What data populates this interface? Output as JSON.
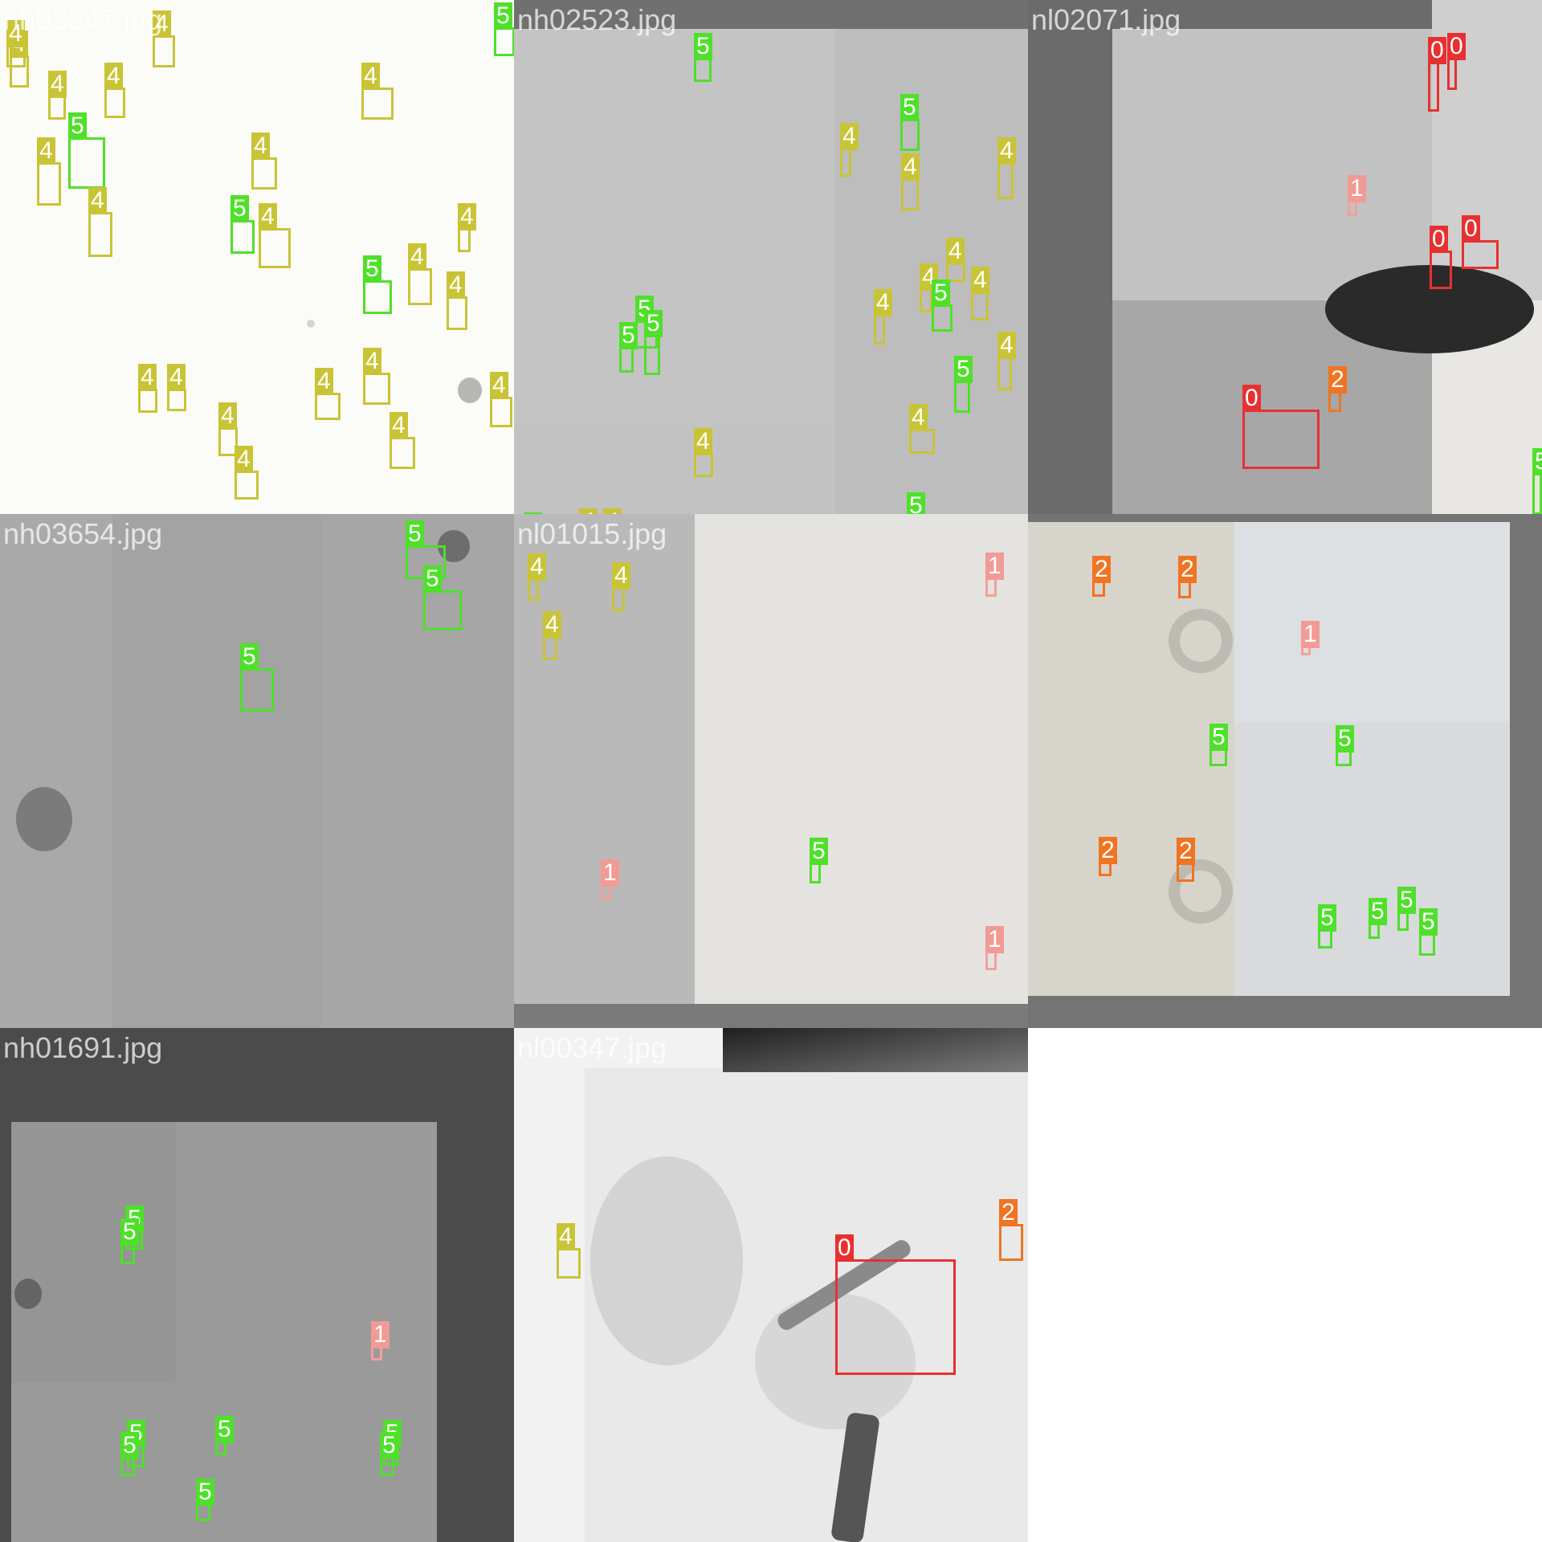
{
  "classes": {
    "0": {
      "color": "#e83030",
      "label_color": "#e83030"
    },
    "1": {
      "color": "#f4a09b",
      "label_color": "#f29a95"
    },
    "2": {
      "color": "#f07422",
      "label_color": "#f07422"
    },
    "4": {
      "color": "#c9c436",
      "label_color": "#c9c436"
    },
    "5": {
      "color": "#4fe02a",
      "label_color": "#4fe02a"
    }
  },
  "tiles": [
    {
      "title": "nh03347.jpg",
      "background": "#fbfbf7",
      "detections": [
        {
          "cls": "4",
          "label": "4"
        },
        {
          "cls": "4",
          "label": "4"
        },
        {
          "cls": "4",
          "label": "4"
        },
        {
          "cls": "4",
          "label": "4"
        },
        {
          "cls": "5",
          "label": "5"
        },
        {
          "cls": "4",
          "label": "4"
        },
        {
          "cls": "4",
          "label": "4"
        },
        {
          "cls": "4",
          "label": "4"
        },
        {
          "cls": "4",
          "label": "4"
        },
        {
          "cls": "5",
          "label": "5"
        },
        {
          "cls": "4",
          "label": "4"
        },
        {
          "cls": "5",
          "label": "5"
        },
        {
          "cls": "4",
          "label": "4"
        },
        {
          "cls": "4",
          "label": "4"
        },
        {
          "cls": "4",
          "label": "4"
        },
        {
          "cls": "4",
          "label": "4"
        },
        {
          "cls": "4",
          "label": "4"
        },
        {
          "cls": "4",
          "label": "4"
        },
        {
          "cls": "4",
          "label": "4"
        },
        {
          "cls": "4",
          "label": "4"
        },
        {
          "cls": "4",
          "label": "4"
        },
        {
          "cls": "4",
          "label": "4"
        },
        {
          "cls": "4",
          "label": "4"
        },
        {
          "cls": "5",
          "label": "5"
        },
        {
          "cls": "4",
          "label": "4"
        }
      ]
    },
    {
      "title": "nh02523.jpg",
      "background": "#c4c4c4",
      "detections": [
        {
          "cls": "5",
          "label": "5"
        },
        {
          "cls": "5",
          "label": "5"
        },
        {
          "cls": "4",
          "label": "4"
        },
        {
          "cls": "4",
          "label": "4"
        },
        {
          "cls": "4",
          "label": "4"
        },
        {
          "cls": "4",
          "label": "4"
        },
        {
          "cls": "4",
          "label": "4"
        },
        {
          "cls": "4",
          "label": "4"
        },
        {
          "cls": "4",
          "label": "4"
        },
        {
          "cls": "5",
          "label": "5"
        },
        {
          "cls": "5",
          "label": "5"
        },
        {
          "cls": "5",
          "label": "5"
        },
        {
          "cls": "5",
          "label": "5"
        },
        {
          "cls": "4",
          "label": "4"
        },
        {
          "cls": "4",
          "label": "4"
        },
        {
          "cls": "4",
          "label": "4"
        },
        {
          "cls": "5",
          "label": "5"
        },
        {
          "cls": "5",
          "label": "5"
        },
        {
          "cls": "5",
          "label": "5"
        },
        {
          "cls": "4",
          "label": "4"
        },
        {
          "cls": "4",
          "label": "4"
        }
      ]
    },
    {
      "title": "nl02071.jpg",
      "background": "#6b6b6b",
      "detections": [
        {
          "cls": "0",
          "label": "0"
        },
        {
          "cls": "0",
          "label": "0"
        },
        {
          "cls": "1",
          "label": "1"
        },
        {
          "cls": "0",
          "label": "0"
        },
        {
          "cls": "0",
          "label": "0"
        },
        {
          "cls": "0",
          "label": "0"
        },
        {
          "cls": "2",
          "label": "2"
        },
        {
          "cls": "5",
          "label": "5"
        }
      ]
    },
    {
      "title": "nh03654.jpg",
      "background": "#a9a9a9",
      "detections": [
        {
          "cls": "5",
          "label": "5"
        },
        {
          "cls": "5",
          "label": "5"
        },
        {
          "cls": "5",
          "label": "5"
        }
      ]
    },
    {
      "title": "nl01015.jpg",
      "background": "#b9b9b9",
      "detections": [
        {
          "cls": "4",
          "label": "4"
        },
        {
          "cls": "4",
          "label": "4"
        },
        {
          "cls": "4",
          "label": "4"
        },
        {
          "cls": "1",
          "label": "1"
        },
        {
          "cls": "5",
          "label": "5"
        },
        {
          "cls": "1",
          "label": "1"
        },
        {
          "cls": "1",
          "label": "1"
        }
      ]
    },
    {
      "title": "",
      "background": "#747474",
      "detections": [
        {
          "cls": "2",
          "label": "2"
        },
        {
          "cls": "2",
          "label": "2"
        },
        {
          "cls": "1",
          "label": "1"
        },
        {
          "cls": "5",
          "label": "5"
        },
        {
          "cls": "5",
          "label": "5"
        },
        {
          "cls": "2",
          "label": "2"
        },
        {
          "cls": "2",
          "label": "2"
        },
        {
          "cls": "5",
          "label": "5"
        },
        {
          "cls": "5",
          "label": "5"
        },
        {
          "cls": "5",
          "label": "5"
        },
        {
          "cls": "5",
          "label": "5"
        }
      ]
    },
    {
      "title": "nh01691.jpg",
      "background": "#4b4b4b",
      "detections": [
        {
          "cls": "5",
          "label": "5"
        },
        {
          "cls": "5",
          "label": "5"
        },
        {
          "cls": "1",
          "label": "1"
        },
        {
          "cls": "5",
          "label": "5"
        },
        {
          "cls": "5",
          "label": "5"
        },
        {
          "cls": "5",
          "label": "5"
        },
        {
          "cls": "5",
          "label": "5"
        },
        {
          "cls": "5",
          "label": "5"
        },
        {
          "cls": "5",
          "label": "5"
        }
      ]
    },
    {
      "title": "nl00347.jpg",
      "background": "#f2f2f2",
      "detections": [
        {
          "cls": "4",
          "label": "4"
        },
        {
          "cls": "0",
          "label": "0"
        },
        {
          "cls": "2",
          "label": "2"
        }
      ]
    }
  ]
}
